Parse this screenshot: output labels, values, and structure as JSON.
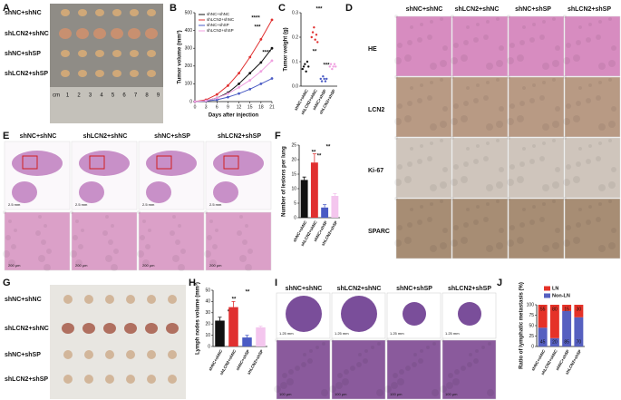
{
  "panel_letters": [
    "A",
    "B",
    "C",
    "D",
    "E",
    "F",
    "G",
    "H",
    "I",
    "J"
  ],
  "panel_A": {
    "rows": [
      "shNC+shNC",
      "shLCN2+shNC",
      "shNC+shSP",
      "shLCN2+shSP"
    ],
    "ruler": [
      "cm",
      "1",
      "2",
      "3",
      "4",
      "5",
      "6",
      "7",
      "8",
      "9"
    ]
  },
  "panel_D": {
    "columns": [
      "shNC+shNC",
      "shLCN2+shNC",
      "shNC+shSP",
      "shLCN2+shSP"
    ],
    "rows": [
      "HE",
      "LCN2",
      "Ki-67",
      "SPARC"
    ]
  },
  "panel_E": {
    "columns": [
      "shNC+shNC",
      "shLCN2+shNC",
      "shNC+shSP",
      "shLCN2+shSP"
    ],
    "scale_bars": [
      "2.5 mm",
      "200 μm"
    ]
  },
  "panel_G": {
    "rows": [
      "shNC+shNC",
      "shLCN2+shNC",
      "shNC+shSP",
      "shLCN2+shSP"
    ]
  },
  "panel_I": {
    "columns": [
      "shNC+shNC",
      "shLCN2+shNC",
      "shNC+shSP",
      "shLCN2+shSP"
    ],
    "scale_bars": [
      "1.25 mm",
      "100 μm"
    ]
  },
  "chart_data": [
    {
      "type": "line",
      "xlabel": "Days after injection",
      "ylabel": "Tumor volume (mm³)",
      "x": [
        0,
        3,
        6,
        9,
        12,
        15,
        18,
        21
      ],
      "xlim": [
        0,
        21
      ],
      "xticks": [
        0,
        3,
        6,
        9,
        12,
        15,
        18,
        21
      ],
      "ylim": [
        0,
        500
      ],
      "yticks": [
        0,
        100,
        200,
        300,
        400,
        500
      ],
      "series": [
        {
          "name": "shNC+shNC",
          "color": "#111111",
          "values": [
            0,
            5,
            20,
            50,
            100,
            160,
            220,
            300
          ]
        },
        {
          "name": "shLCN2+shNC",
          "color": "#e03030",
          "values": [
            0,
            10,
            40,
            90,
            160,
            250,
            350,
            460
          ]
        },
        {
          "name": "shNC+shSP",
          "color": "#4a5bc4",
          "values": [
            0,
            3,
            10,
            25,
            45,
            70,
            100,
            130
          ]
        },
        {
          "name": "shLCN2+shSP",
          "color": "#f0a0e0",
          "values": [
            0,
            5,
            20,
            45,
            80,
            120,
            170,
            230
          ]
        }
      ],
      "annotations": [
        "****",
        "***",
        "****"
      ]
    },
    {
      "type": "dot",
      "ylabel": "Tumor weight (g)",
      "categories": [
        "shNC+shNC",
        "shLCN2+shNC",
        "shNC+shSP",
        "shLCN2+shSP"
      ],
      "colors": [
        "#111111",
        "#e03030",
        "#4a5bc4",
        "#f0a0e0"
      ],
      "values": [
        [
          0.07,
          0.08,
          0.09,
          0.06,
          0.1,
          0.08
        ],
        [
          0.2,
          0.22,
          0.24,
          0.19,
          0.21,
          0.18
        ],
        [
          0.03,
          0.02,
          0.04,
          0.03,
          0.02,
          0.03
        ],
        [
          0.08,
          0.09,
          0.07,
          0.08,
          0.09,
          0.08
        ]
      ],
      "ylim": [
        0,
        0.3
      ],
      "yticks": [
        {
          "value": 0,
          "label": "0.0"
        },
        0.1,
        0.2,
        0.3
      ],
      "annotations": [
        "***",
        "**",
        "***"
      ]
    },
    {
      "type": "bar",
      "ylabel": "Number of lesions per lung",
      "categories": [
        "shNC+shNC",
        "shLCN2+shNC",
        "shNC+shSP",
        "shLCN2+shSP"
      ],
      "colors": [
        "#111111",
        "#e03030",
        "#4a5bc4",
        "#f4c6ee"
      ],
      "values": [
        13,
        19,
        3.5,
        7.5
      ],
      "errors": [
        1,
        3,
        1,
        0.8
      ],
      "ylim": [
        0,
        25
      ],
      "yticks": [
        0,
        5,
        10,
        15,
        20,
        25
      ],
      "annotations": [
        "**",
        "**",
        "**"
      ]
    },
    {
      "type": "bar",
      "ylabel": "Lymph nodes volume (mm³)",
      "categories": [
        "shNC+shNC",
        "shLCN2+shNC",
        "shNC+shSP",
        "shLCN2+shSP"
      ],
      "colors": [
        "#111111",
        "#e03030",
        "#4a5bc4",
        "#f4c6ee"
      ],
      "values": [
        23,
        35,
        8,
        17
      ],
      "errors": [
        3,
        5,
        2,
        1
      ],
      "ylim": [
        0,
        50
      ],
      "yticks": [
        0,
        10,
        20,
        30,
        40,
        50
      ],
      "annotations": [
        "*",
        "**",
        "**"
      ]
    },
    {
      "type": "stacked_bar",
      "ylabel": "Ratio of lymphatic metastasis (%)",
      "categories": [
        "shNC+shNC",
        "shLCN2+shNC",
        "shNC+shSP",
        "shLCN2+shSP"
      ],
      "series": [
        {
          "name": "Non-LN",
          "color": "#5660c0",
          "values": [
            45,
            20,
            85,
            70
          ]
        },
        {
          "name": "LN",
          "color": "#e53228",
          "values": [
            55,
            80,
            15,
            30
          ]
        }
      ],
      "ylim": [
        0,
        100
      ],
      "yticks": [
        0,
        25,
        50,
        75,
        100
      ]
    }
  ]
}
